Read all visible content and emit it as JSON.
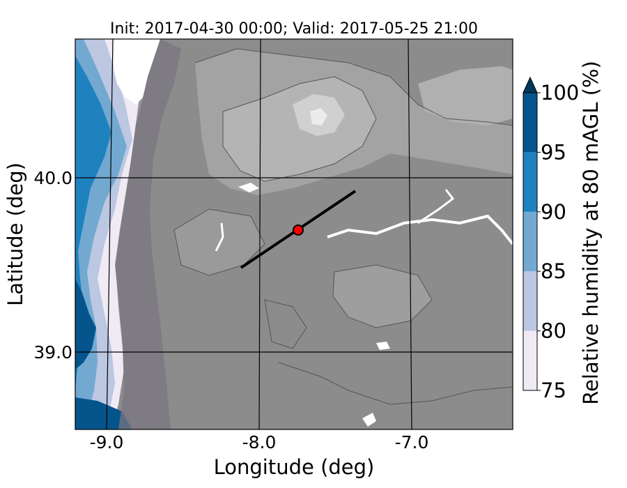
{
  "title": "Init: 2017-04-30 00:00; Valid: 2017-05-25 21:00",
  "xlabel": "Longitude (deg)",
  "ylabel": "Latitude (deg)",
  "x_ticks": [
    "-9.0",
    "-8.0",
    "-7.0"
  ],
  "y_ticks": [
    "40.0",
    "39.0"
  ],
  "colorbar": {
    "label": "Relative humidity at 80 mAGL (%)",
    "ticks": [
      "75",
      "80",
      "85",
      "90",
      "95",
      "100"
    ],
    "levels": [
      75,
      80,
      85,
      90,
      95,
      100
    ],
    "colors": [
      "#efeaf4",
      "#bcc7e2",
      "#73a9d1",
      "#2081bf",
      "#06548c",
      "#023858"
    ],
    "extend": "max"
  },
  "colors": {
    "land_gray": "#8c8c8c",
    "highland_gray": "#b4b4b4",
    "peak_gray": "#e6e6e6",
    "marker": "#ff0000",
    "transect": "#000000"
  },
  "chart_data": {
    "type": "heatmap",
    "title": "Init: 2017-04-30 00:00; Valid: 2017-05-25 21:00",
    "xlabel": "Longitude (deg)",
    "ylabel": "Latitude (deg)",
    "xlim": [
      -9.25,
      -6.4
    ],
    "ylim": [
      38.55,
      40.8
    ],
    "grid": true,
    "transect": {
      "start": [
        -8.12,
        39.48
      ],
      "end": [
        -7.38,
        39.92
      ]
    },
    "marker": {
      "lon": -7.76,
      "lat": 39.68
    }
  }
}
